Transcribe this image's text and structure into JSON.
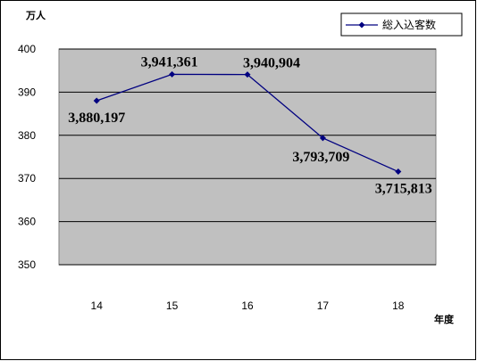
{
  "chart_data": {
    "type": "line",
    "y_unit": "万人",
    "x_unit": "年度",
    "categories": [
      "14",
      "15",
      "16",
      "17",
      "18"
    ],
    "series": [
      {
        "name": "総入込客数",
        "values": [
          388.0197,
          394.1361,
          394.0904,
          379.3709,
          371.5813
        ],
        "data_labels": [
          "3,880,197",
          "3,941,361",
          "3,940,904",
          "3,793,709",
          "3,715,813"
        ]
      }
    ],
    "ylim": [
      350,
      400
    ],
    "yticks": [
      "350",
      "360",
      "370",
      "380",
      "390",
      "400"
    ],
    "grid": true,
    "legend_position": "top-right",
    "colors": {
      "plot_bg": "#c0c0c0",
      "line": "#000080",
      "grid": "#000000"
    }
  }
}
